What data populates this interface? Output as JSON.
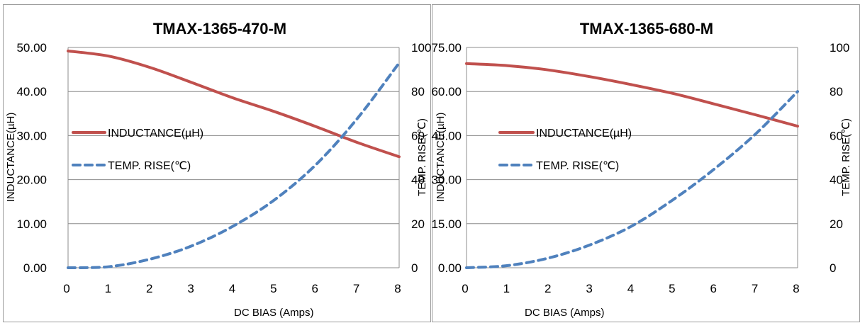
{
  "chart_data": [
    {
      "type": "line",
      "title": "TMAX-1365-470-M",
      "xlabel": "DC BIAS (Amps)",
      "ylabel": "INDUCTANCE(µH)",
      "y2label": "TEMP. RISE(℃)",
      "xlim": [
        0,
        8
      ],
      "ylim": [
        0,
        50
      ],
      "y2lim": [
        0,
        100
      ],
      "xticks": [
        "0",
        "1",
        "2",
        "3",
        "4",
        "5",
        "6",
        "7",
        "8"
      ],
      "yticks": [
        "0.00",
        "10.00",
        "20.00",
        "30.00",
        "40.00",
        "50.00"
      ],
      "y2ticks": [
        "0",
        "20",
        "40",
        "60",
        "80",
        "100"
      ],
      "grid": true,
      "legend_position": "left-middle",
      "series": [
        {
          "name": "INDUCTANCE(µH)",
          "axis": "left",
          "color": "#c0504d",
          "style": "solid",
          "x": [
            0,
            1,
            2,
            3,
            4,
            5,
            6,
            7,
            8
          ],
          "y": [
            49.2,
            48.0,
            45.4,
            42.0,
            38.5,
            35.4,
            32.0,
            28.4,
            25.2
          ]
        },
        {
          "name": "TEMP. RISE(℃)",
          "axis": "right",
          "color": "#4f81bd",
          "style": "dashed",
          "x": [
            0,
            1,
            2,
            3,
            4,
            5,
            6,
            7,
            8
          ],
          "y": [
            0,
            0.5,
            4,
            10,
            19,
            31,
            47,
            68,
            93
          ]
        }
      ]
    },
    {
      "type": "line",
      "title": "TMAX-1365-680-M",
      "xlabel": "DC BIAS  (Amps)",
      "ylabel": "INDUCTANCE(µH)",
      "y2label": "TEMP. RISE(℃)",
      "xlim": [
        0,
        8
      ],
      "ylim": [
        0,
        75
      ],
      "y2lim": [
        0,
        100
      ],
      "xticks": [
        "0",
        "1",
        "2",
        "3",
        "4",
        "5",
        "6",
        "7",
        "8"
      ],
      "yticks": [
        "0.00",
        "15.00",
        "30.00",
        "45.00",
        "60.00",
        "75.00"
      ],
      "y2ticks": [
        "0",
        "20",
        "40",
        "60",
        "80",
        "100"
      ],
      "grid": true,
      "legend_position": "left-middle",
      "series": [
        {
          "name": "INDUCTANCE(µH)",
          "axis": "left",
          "color": "#c0504d",
          "style": "solid",
          "x": [
            0,
            1,
            2,
            3,
            4,
            5,
            6,
            7,
            8
          ],
          "y": [
            69.5,
            68.8,
            67.3,
            65.0,
            62.3,
            59.3,
            55.7,
            52.0,
            48.2
          ]
        },
        {
          "name": "TEMP. RISE(℃)",
          "axis": "right",
          "color": "#4f81bd",
          "style": "dashed",
          "x": [
            0,
            1,
            2,
            3,
            4,
            5,
            6,
            7,
            8
          ],
          "y": [
            0,
            1,
            4.5,
            10.5,
            19,
            31,
            45,
            61,
            80
          ]
        }
      ]
    }
  ]
}
